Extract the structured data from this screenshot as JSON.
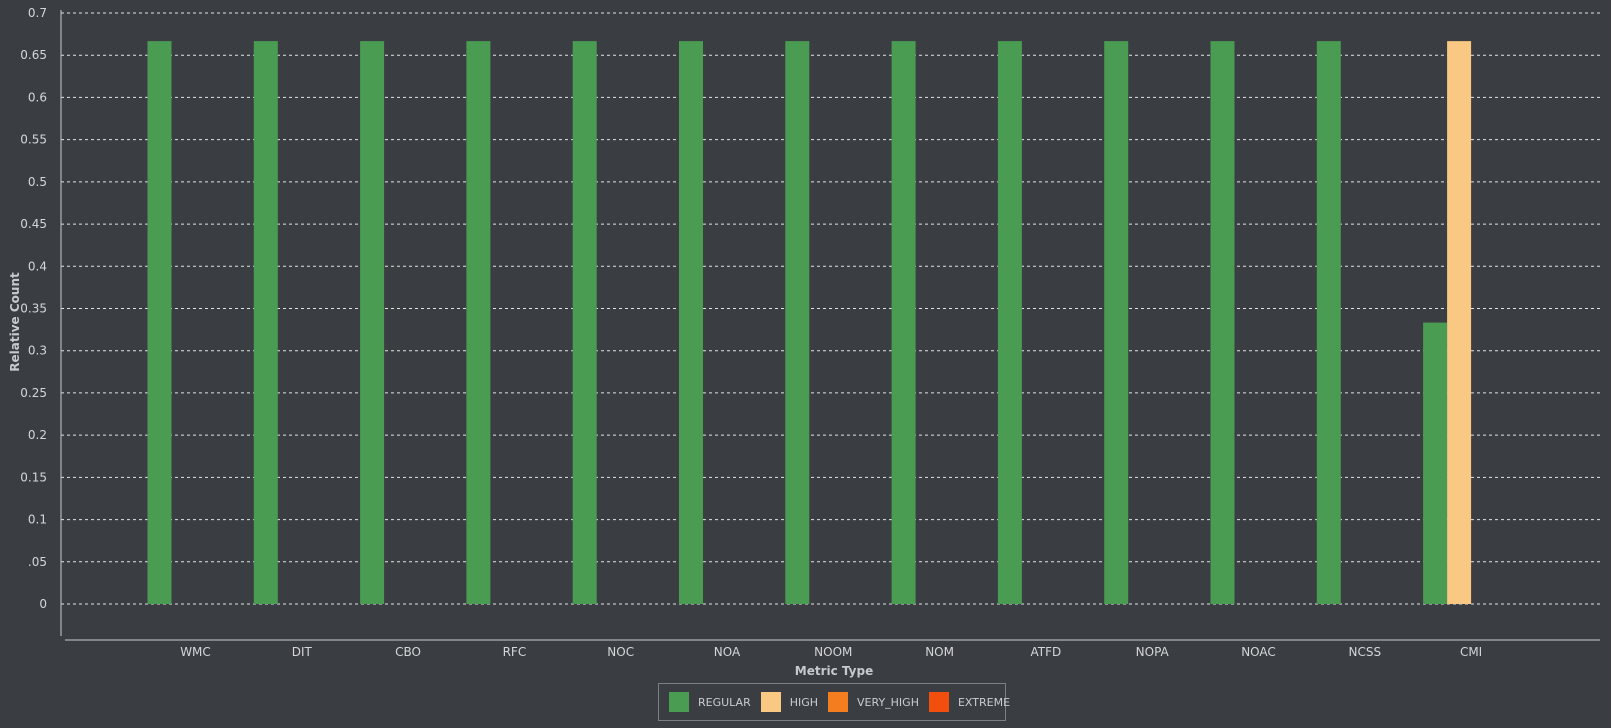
{
  "chart_data": {
    "type": "bar",
    "title": "",
    "xlabel": "Metric Type",
    "ylabel": "Relative Count",
    "ylim": [
      0,
      0.7
    ],
    "yticks": [
      {
        "value": 0,
        "label": "0"
      },
      {
        "value": 0.05,
        "label": ".05"
      },
      {
        "value": 0.1,
        "label": "0.1"
      },
      {
        "value": 0.15,
        "label": "0.15"
      },
      {
        "value": 0.2,
        "label": "0.2"
      },
      {
        "value": 0.25,
        "label": "0.25"
      },
      {
        "value": 0.3,
        "label": "0.3"
      },
      {
        "value": 0.35,
        "label": "0.35"
      },
      {
        "value": 0.4,
        "label": "0.4"
      },
      {
        "value": 0.45,
        "label": "0.45"
      },
      {
        "value": 0.5,
        "label": "0.5"
      },
      {
        "value": 0.55,
        "label": "0.55"
      },
      {
        "value": 0.6,
        "label": "0.6"
      },
      {
        "value": 0.65,
        "label": "0.65"
      },
      {
        "value": 0.7,
        "label": "0.7"
      }
    ],
    "grid": true,
    "legend_position": "bottom-center",
    "categories": [
      "WMC",
      "DIT",
      "CBO",
      "RFC",
      "NOC",
      "NOA",
      "NOOM",
      "NOM",
      "ATFD",
      "NOPA",
      "NOAC",
      "NCSS",
      "CMI"
    ],
    "series": [
      {
        "name": "REGULAR",
        "color": "#4a9c52",
        "values": [
          0.6667,
          0.6667,
          0.6667,
          0.6667,
          0.6667,
          0.6667,
          0.6667,
          0.6667,
          0.6667,
          0.6667,
          0.6667,
          0.6667,
          0.3333
        ]
      },
      {
        "name": "HIGH",
        "color": "#f9c882",
        "values": [
          0,
          0,
          0,
          0,
          0,
          0,
          0,
          0,
          0,
          0,
          0,
          0,
          0.6667
        ]
      },
      {
        "name": "VERY_HIGH",
        "color": "#f47d20",
        "values": [
          0,
          0,
          0,
          0,
          0,
          0,
          0,
          0,
          0,
          0,
          0,
          0,
          0
        ]
      },
      {
        "name": "EXTREME",
        "color": "#f24e0e",
        "values": [
          0,
          0,
          0,
          0,
          0,
          0,
          0,
          0,
          0,
          0,
          0,
          0,
          0
        ]
      }
    ]
  }
}
